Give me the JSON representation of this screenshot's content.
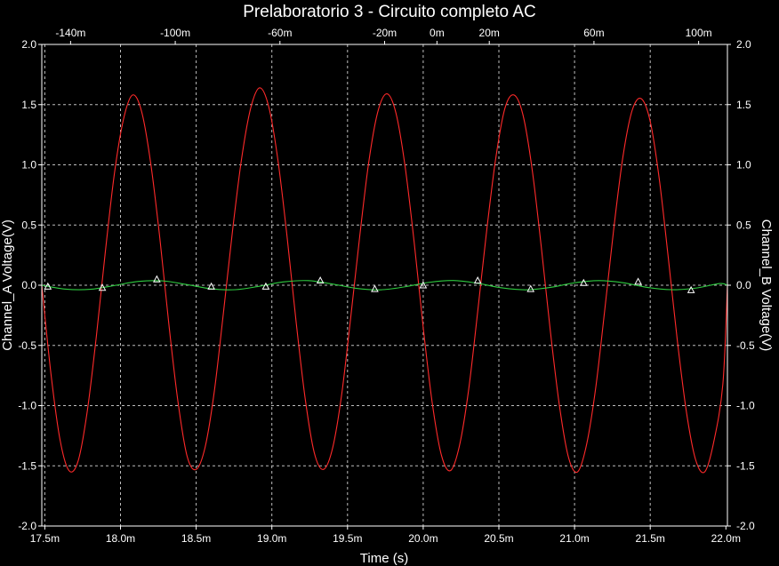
{
  "chart_data": {
    "type": "line",
    "title": "Prelaboratorio 3 - Circuito completo AC",
    "xlabel": "Time (s)",
    "ylabel_left": "Channel_A Voltage(V)",
    "ylabel_right": "Channel_B Voltage(V)",
    "xlim": [
      0.01748,
      0.02201
    ],
    "ylim": [
      -2.0,
      2.0
    ],
    "top_xlim": [
      -0.151,
      0.111
    ],
    "x_ticks": [
      {
        "value": 0.0175,
        "label": "17.5m"
      },
      {
        "value": 0.018,
        "label": "18.0m"
      },
      {
        "value": 0.0185,
        "label": "18.5m"
      },
      {
        "value": 0.019,
        "label": "19.0m"
      },
      {
        "value": 0.0195,
        "label": "19.5m"
      },
      {
        "value": 0.02,
        "label": "20.0m"
      },
      {
        "value": 0.0205,
        "label": "20.5m"
      },
      {
        "value": 0.021,
        "label": "21.0m"
      },
      {
        "value": 0.0215,
        "label": "21.5m"
      },
      {
        "value": 0.022,
        "label": "22.0m"
      }
    ],
    "top_ticks": [
      {
        "value": -0.14,
        "label": "-140m"
      },
      {
        "value": -0.1,
        "label": "-100m"
      },
      {
        "value": -0.06,
        "label": "-60m"
      },
      {
        "value": -0.02,
        "label": "-20m"
      },
      {
        "value": 0.0,
        "label": "0m"
      },
      {
        "value": 0.02,
        "label": "20m"
      },
      {
        "value": 0.06,
        "label": "60m"
      },
      {
        "value": 0.1,
        "label": "100m"
      }
    ],
    "y_ticks": [
      {
        "value": 2.0,
        "label": "2.0"
      },
      {
        "value": 1.5,
        "label": "1.5"
      },
      {
        "value": 1.0,
        "label": "1.0"
      },
      {
        "value": 0.5,
        "label": "0.5"
      },
      {
        "value": 0.0,
        "label": "0.0"
      },
      {
        "value": -0.5,
        "label": "-0.5"
      },
      {
        "value": -1.0,
        "label": "-1.0"
      },
      {
        "value": -1.5,
        "label": "-1.5"
      },
      {
        "value": -2.0,
        "label": "-2.0"
      }
    ],
    "grid": true,
    "series": [
      {
        "color": "#ff2a2a",
        "marker": "none",
        "x": [
          0.01748,
          0.01754,
          0.0176,
          0.01766,
          0.01772,
          0.01778,
          0.01784,
          0.0179,
          0.01796,
          0.01802,
          0.01808,
          0.01814,
          0.0182,
          0.01826,
          0.01832,
          0.01838,
          0.01844,
          0.0185,
          0.01856,
          0.01862,
          0.01868,
          0.01874,
          0.0188,
          0.01886,
          0.01892,
          0.01898,
          0.01904,
          0.0191,
          0.01916,
          0.01922,
          0.01928,
          0.01934,
          0.0194,
          0.01946,
          0.01952,
          0.01958,
          0.01964,
          0.0197,
          0.01976,
          0.01982,
          0.01988,
          0.01994,
          0.02,
          0.02006,
          0.02012,
          0.02018,
          0.02024,
          0.0203,
          0.02036,
          0.02042,
          0.02048,
          0.02054,
          0.0206,
          0.02066,
          0.02072,
          0.02078,
          0.02084,
          0.0209,
          0.02096,
          0.02102,
          0.02108,
          0.02114,
          0.0212,
          0.02126,
          0.02132,
          0.02138,
          0.02144,
          0.0215,
          0.02156,
          0.02162,
          0.02168,
          0.02174,
          0.0218,
          0.02186,
          0.02192,
          0.02198,
          0.02201
        ],
        "y": [
          0.0,
          -0.73,
          -1.28,
          -1.54,
          -1.46,
          -1.05,
          -0.43,
          0.28,
          0.93,
          1.38,
          1.58,
          1.44,
          1.01,
          0.39,
          -0.33,
          -0.97,
          -1.42,
          -1.53,
          -1.34,
          -0.88,
          -0.23,
          0.45,
          1.05,
          1.47,
          1.64,
          1.48,
          1.04,
          0.41,
          -0.3,
          -0.94,
          -1.39,
          -1.53,
          -1.36,
          -0.92,
          -0.28,
          0.4,
          1.02,
          1.44,
          1.59,
          1.43,
          0.99,
          0.36,
          -0.35,
          -0.98,
          -1.41,
          -1.54,
          -1.33,
          -0.87,
          -0.22,
          0.46,
          1.06,
          1.47,
          1.58,
          1.41,
          0.96,
          0.32,
          -0.38,
          -1.0,
          -1.43,
          -1.55,
          -1.32,
          -0.85,
          -0.2,
          0.48,
          1.07,
          1.45,
          1.55,
          1.36,
          0.88,
          0.22,
          -0.47,
          -1.06,
          -1.45,
          -1.55,
          -1.3,
          -0.82,
          0.0
        ]
      },
      {
        "color": "#2ecc40",
        "marker": "triangle",
        "x": [
          0.01748,
          0.01764,
          0.0178,
          0.01796,
          0.01812,
          0.01828,
          0.01844,
          0.0186,
          0.01876,
          0.01892,
          0.01908,
          0.01924,
          0.0194,
          0.01956,
          0.01972,
          0.01988,
          0.02004,
          0.0202,
          0.02036,
          0.02052,
          0.02068,
          0.02084,
          0.021,
          0.02116,
          0.02132,
          0.02148,
          0.02164,
          0.0218,
          0.02196,
          0.02201
        ],
        "y": [
          0.0,
          -0.033,
          -0.034,
          -0.002,
          0.032,
          0.036,
          0.005,
          -0.03,
          -0.037,
          -0.008,
          0.028,
          0.038,
          0.01,
          -0.026,
          -0.038,
          -0.013,
          0.024,
          0.039,
          0.016,
          -0.022,
          -0.038,
          -0.018,
          0.02,
          0.038,
          0.021,
          -0.018,
          -0.037,
          -0.024,
          0.014,
          0.0
        ],
        "markers": [
          {
            "x": 0.01752,
            "y": -0.01
          },
          {
            "x": 0.01788,
            "y": -0.02
          },
          {
            "x": 0.01824,
            "y": 0.05
          },
          {
            "x": 0.0186,
            "y": -0.01
          },
          {
            "x": 0.01896,
            "y": -0.01
          },
          {
            "x": 0.01932,
            "y": 0.04
          },
          {
            "x": 0.01968,
            "y": -0.03
          },
          {
            "x": 0.02,
            "y": 0.0
          },
          {
            "x": 0.02036,
            "y": 0.04
          },
          {
            "x": 0.02071,
            "y": -0.03
          },
          {
            "x": 0.02106,
            "y": 0.02
          },
          {
            "x": 0.02142,
            "y": 0.03
          },
          {
            "x": 0.02177,
            "y": -0.04
          }
        ]
      }
    ]
  }
}
